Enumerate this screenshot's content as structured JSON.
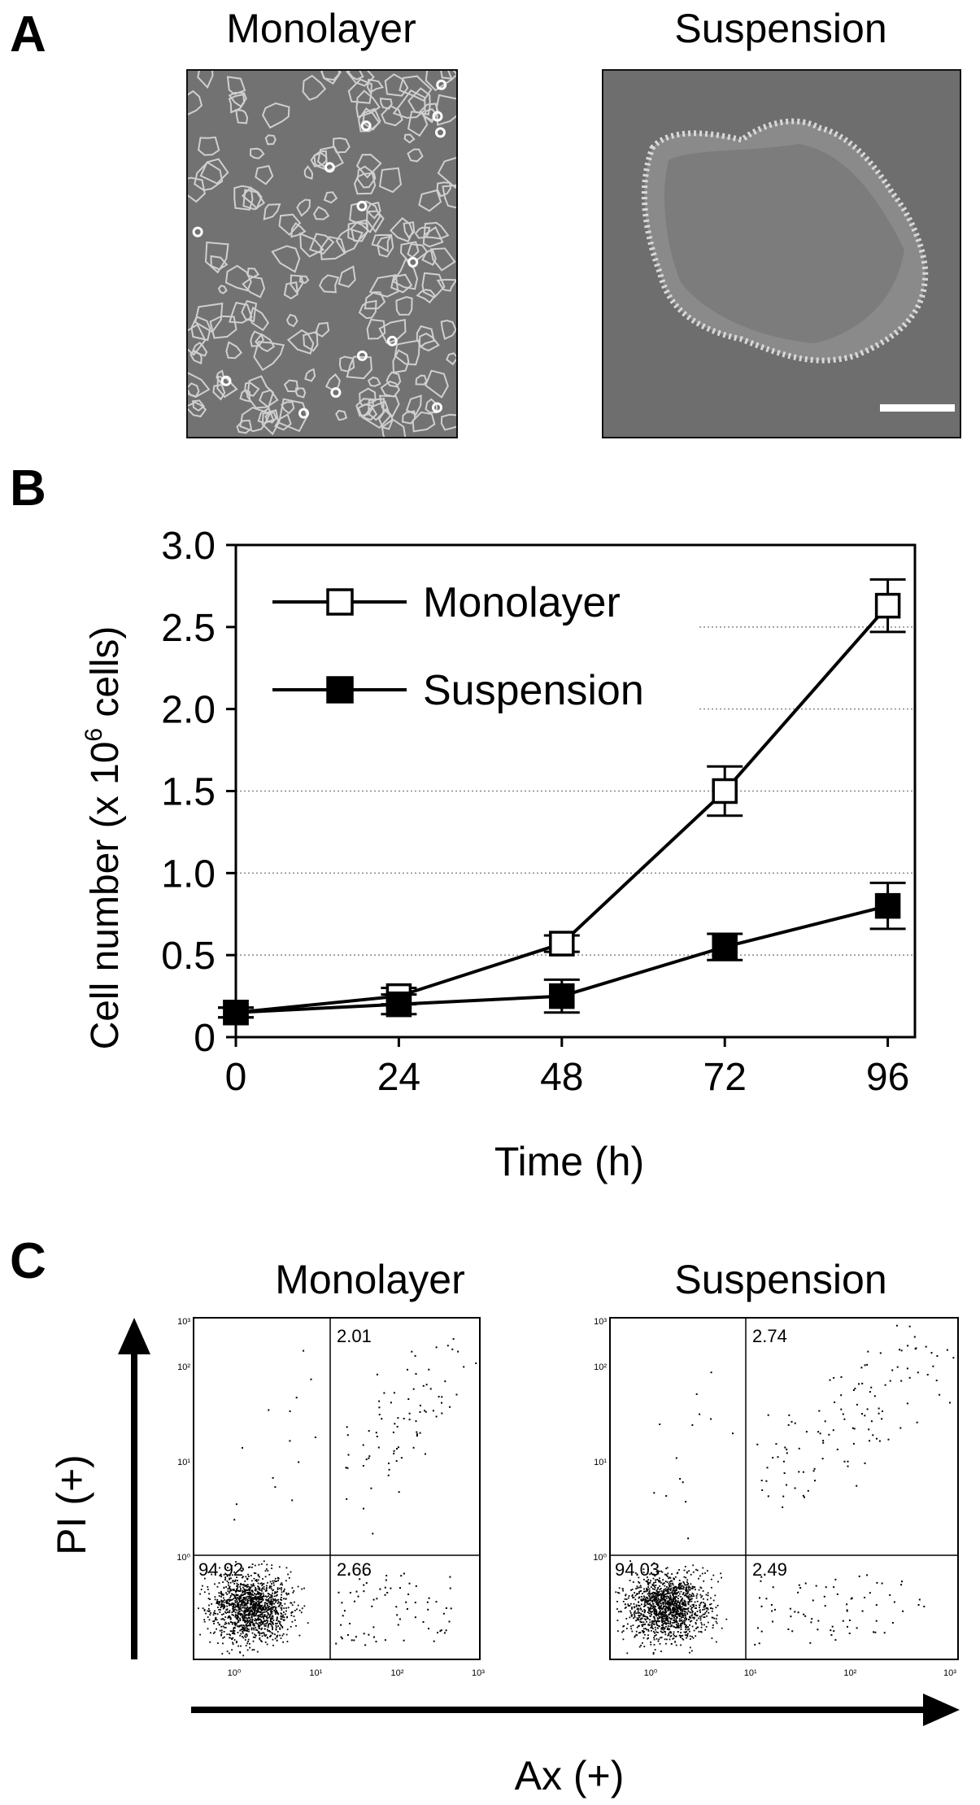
{
  "panels": {
    "a": {
      "letter": "A",
      "left_title": "Monolayer",
      "right_title": "Suspension"
    },
    "b": {
      "letter": "B"
    },
    "c": {
      "letter": "C",
      "left_title": "Monolayer",
      "right_title": "Suspension",
      "y_axis_label": "PI (+)",
      "x_axis_label": "Ax (+)"
    }
  },
  "chart_data": [
    {
      "type": "line",
      "xlabel": "Time (h)",
      "ylabel_main": "Cell number (x 10",
      "ylabel_sup": "6",
      "ylabel_tail": " cells)",
      "x": [
        0,
        24,
        48,
        72,
        96
      ],
      "xticks": [
        "0",
        "24",
        "48",
        "72",
        "96"
      ],
      "yticks": [
        "0",
        "0.5",
        "1.0",
        "1.5",
        "2.0",
        "2.5",
        "3.0"
      ],
      "ylim": [
        0,
        3.0
      ],
      "grid": "dotted horizontal",
      "legend": "top-left",
      "series": [
        {
          "name": "Monolayer",
          "marker": "open-square",
          "values": [
            0.15,
            0.25,
            0.57,
            1.5,
            2.63
          ],
          "errors": [
            0.03,
            0.05,
            0.05,
            0.15,
            0.16
          ]
        },
        {
          "name": "Suspension",
          "marker": "filled-square",
          "values": [
            0.15,
            0.2,
            0.25,
            0.55,
            0.8
          ],
          "errors": [
            0.03,
            0.06,
            0.1,
            0.08,
            0.14
          ]
        }
      ]
    },
    {
      "type": "scatter",
      "title": "Monolayer",
      "scale": "log",
      "xticks": [
        "10⁰",
        "10¹",
        "10²",
        "10³"
      ],
      "yticks": [
        "10⁰",
        "10¹",
        "10²",
        "10³"
      ],
      "quadrants": {
        "upper_right": "2.01",
        "lower_left": "94.92",
        "lower_right": "2.66"
      }
    },
    {
      "type": "scatter",
      "title": "Suspension",
      "scale": "log",
      "xticks": [
        "10⁰",
        "10¹",
        "10²",
        "10³"
      ],
      "yticks": [
        "10⁰",
        "10¹",
        "10²",
        "10³"
      ],
      "quadrants": {
        "upper_right": "2.74",
        "lower_left": "94.03",
        "lower_right": "2.49"
      }
    }
  ]
}
